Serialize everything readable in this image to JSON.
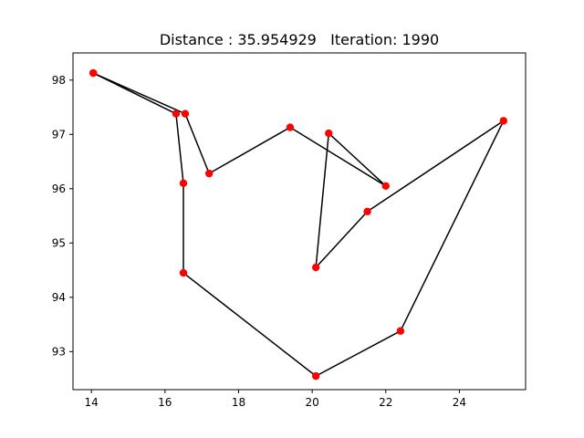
{
  "chart_data": {
    "type": "line",
    "title": "Distance : 35.954929   Iteration: 1990",
    "xlabel": "",
    "ylabel": "",
    "xlim": [
      13.5,
      25.8
    ],
    "ylim": [
      92.3,
      98.5
    ],
    "xticks": [
      14,
      16,
      18,
      20,
      22,
      24
    ],
    "yticks": [
      93,
      94,
      95,
      96,
      97,
      98
    ],
    "grid": false,
    "colors": {
      "line": "#000000",
      "marker": "#ff0000"
    },
    "series": [
      {
        "x": [
          14.05,
          16.55,
          17.2,
          19.4,
          22.0,
          20.45,
          20.1,
          21.5,
          25.2,
          22.4,
          20.1,
          16.5,
          16.5,
          16.3,
          14.05
        ],
        "y": [
          98.13,
          97.38,
          96.28,
          97.13,
          96.05,
          97.02,
          94.55,
          95.58,
          97.25,
          93.38,
          92.55,
          94.45,
          96.1,
          97.38,
          98.13
        ]
      }
    ]
  }
}
